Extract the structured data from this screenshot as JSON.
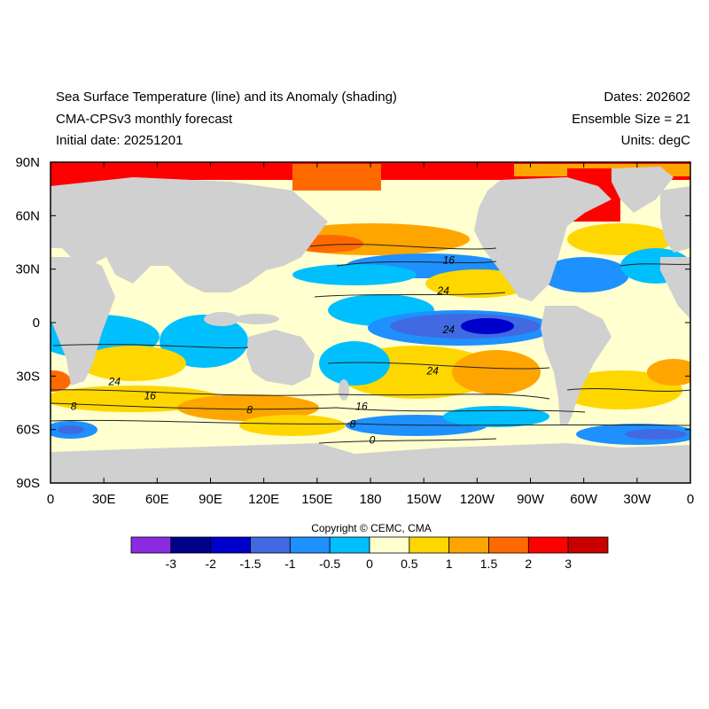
{
  "header": {
    "title_line1": "Sea Surface Temperature (line) and its Anomaly (shading)",
    "title_line2": "CMA-CPSv3 monthly forecast",
    "title_line3": "Initial date: 20251201",
    "dates": "Dates: 202602",
    "ensemble": "Ensemble Size = 21",
    "units": "Units: degC"
  },
  "axes": {
    "lat_ticks": [
      {
        "lat": 90,
        "label": "90N"
      },
      {
        "lat": 60,
        "label": "60N"
      },
      {
        "lat": 30,
        "label": "30N"
      },
      {
        "lat": 0,
        "label": "0"
      },
      {
        "lat": -30,
        "label": "30S"
      },
      {
        "lat": -60,
        "label": "60S"
      },
      {
        "lat": -90,
        "label": "90S"
      }
    ],
    "lon_ticks": [
      {
        "lon": 0,
        "label": "0"
      },
      {
        "lon": 30,
        "label": "30E"
      },
      {
        "lon": 60,
        "label": "60E"
      },
      {
        "lon": 90,
        "label": "90E"
      },
      {
        "lon": 120,
        "label": "120E"
      },
      {
        "lon": 150,
        "label": "150E"
      },
      {
        "lon": 180,
        "label": "180"
      },
      {
        "lon": 210,
        "label": "150W"
      },
      {
        "lon": 240,
        "label": "120W"
      },
      {
        "lon": 270,
        "label": "90W"
      },
      {
        "lon": 300,
        "label": "60W"
      },
      {
        "lon": 330,
        "label": "30W"
      },
      {
        "lon": 360,
        "label": "0"
      }
    ]
  },
  "copyright": "Copyright © CEMC, CMA",
  "colorbar": {
    "colors": [
      "#8a2be2",
      "#00008b",
      "#0000cd",
      "#4169e1",
      "#1e90ff",
      "#00bfff",
      "#ffffd0",
      "#ffd700",
      "#ffa500",
      "#ff6a00",
      "#ff0000",
      "#c80000"
    ],
    "labels": [
      "-3",
      "-2",
      "-1.5",
      "-1",
      "-0.5",
      "0",
      "0.5",
      "1",
      "1.5",
      "2",
      "3"
    ]
  },
  "colors": {
    "land": "#d0d0d0",
    "ocean_base": "#ffffd0",
    "contour": "#222222"
  },
  "contour_labels": [
    {
      "text": "16",
      "lon": 224,
      "lat": 35
    },
    {
      "text": "24",
      "lon": 221,
      "lat": 18
    },
    {
      "text": "24",
      "lon": 224,
      "lat": -4
    },
    {
      "text": "24",
      "lon": 215,
      "lat": -27
    },
    {
      "text": "24",
      "lon": 36,
      "lat": -33
    },
    {
      "text": "16",
      "lon": 56,
      "lat": -41
    },
    {
      "text": "8",
      "lon": 13,
      "lat": -47
    },
    {
      "text": "8",
      "lon": 112,
      "lat": -49
    },
    {
      "text": "16",
      "lon": 175,
      "lat": -47
    },
    {
      "text": "8",
      "lon": 170,
      "lat": -57
    },
    {
      "text": "0",
      "lon": 181,
      "lat": -66
    }
  ]
}
